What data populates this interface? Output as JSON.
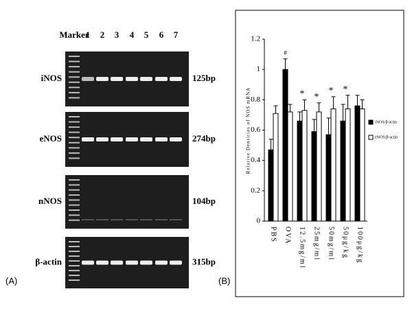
{
  "gel": {
    "header": [
      "Marker",
      "1",
      "2",
      "3",
      "4",
      "5",
      "6",
      "7"
    ],
    "rows": [
      {
        "label": "iNOS",
        "size": "125bp"
      },
      {
        "label": "eNOS",
        "size": "274bp"
      },
      {
        "label": "nNOS",
        "size": "104bp"
      },
      {
        "label": "β-actin",
        "size": "315bp"
      }
    ]
  },
  "panel_labels": [
    "(A)",
    "(B)"
  ],
  "chart_data": {
    "type": "bar",
    "y_label": "Relative Densities of NOS mRNA",
    "categories": [
      "PBS",
      "OVA",
      "12.5mg/ml",
      "25mg/ml",
      "50mg/ml",
      "50μg/kg",
      "100μg/kg"
    ],
    "series": [
      {
        "name": "iNOS/β-actin",
        "color": "#000000",
        "values": [
          0.47,
          1.0,
          0.66,
          0.59,
          0.57,
          0.66,
          0.76
        ],
        "errors": [
          0.07,
          0.07,
          0.06,
          0.08,
          0.11,
          0.11,
          0.07
        ]
      },
      {
        "name": "eNOS/β-actin",
        "color": "#ffffff",
        "values": [
          0.71,
          0.72,
          0.73,
          0.72,
          0.74,
          0.74,
          0.74
        ],
        "errors": [
          0.05,
          0.05,
          0.07,
          0.06,
          0.08,
          0.09,
          0.06
        ]
      }
    ],
    "markers": [
      null,
      "#",
      "*",
      "*",
      "*",
      "*",
      null
    ],
    "ylim": [
      0,
      1.2
    ],
    "yticks": [
      0,
      0.2,
      0.4,
      0.6,
      0.8,
      1,
      1.2
    ],
    "grid": false,
    "legend": "right"
  }
}
